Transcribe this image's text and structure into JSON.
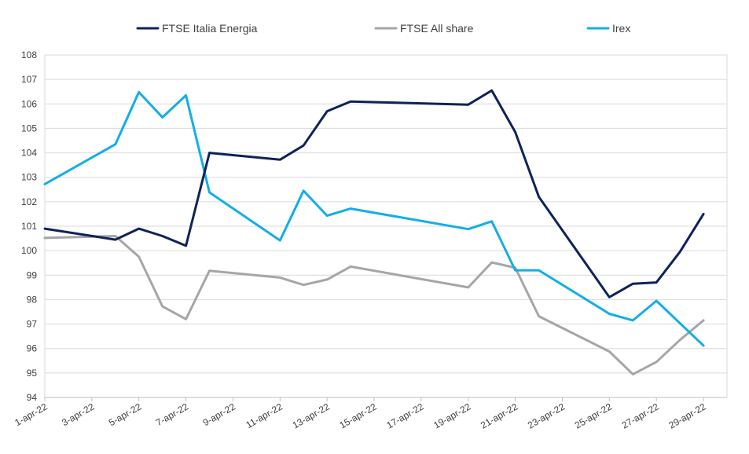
{
  "chart_data": {
    "type": "line",
    "title": "",
    "xlabel": "",
    "ylabel": "",
    "ylim": [
      94,
      108
    ],
    "yticks": [
      94,
      95,
      96,
      97,
      98,
      99,
      100,
      101,
      102,
      103,
      104,
      105,
      106,
      107,
      108
    ],
    "xlim": [
      "2022-04-01",
      "2022-04-30"
    ],
    "xticks": [
      {
        "date": "2022-04-01",
        "label": "1-apr-22"
      },
      {
        "date": "2022-04-03",
        "label": "3-apr-22"
      },
      {
        "date": "2022-04-05",
        "label": "5-apr-22"
      },
      {
        "date": "2022-04-07",
        "label": "7-apr-22"
      },
      {
        "date": "2022-04-09",
        "label": "9-apr-22"
      },
      {
        "date": "2022-04-11",
        "label": "11-apr-22"
      },
      {
        "date": "2022-04-13",
        "label": "13-apr-22"
      },
      {
        "date": "2022-04-15",
        "label": "15-apr-22"
      },
      {
        "date": "2022-04-17",
        "label": "17-apr-22"
      },
      {
        "date": "2022-04-19",
        "label": "19-apr-22"
      },
      {
        "date": "2022-04-21",
        "label": "21-apr-22"
      },
      {
        "date": "2022-04-23",
        "label": "23-apr-22"
      },
      {
        "date": "2022-04-25",
        "label": "25-apr-22"
      },
      {
        "date": "2022-04-27",
        "label": "27-apr-22"
      },
      {
        "date": "2022-04-29",
        "label": "29-apr-22"
      }
    ],
    "grid": true,
    "legend_position": "top",
    "series": [
      {
        "name": "FTSE Italia Energia",
        "color": "#0d2359",
        "points": [
          {
            "x": "2022-04-01",
            "y": 100.9
          },
          {
            "x": "2022-04-04",
            "y": 100.45
          },
          {
            "x": "2022-04-05",
            "y": 100.9
          },
          {
            "x": "2022-04-06",
            "y": 100.6
          },
          {
            "x": "2022-04-07",
            "y": 100.2
          },
          {
            "x": "2022-04-08",
            "y": 104.0
          },
          {
            "x": "2022-04-11",
            "y": 103.72
          },
          {
            "x": "2022-04-12",
            "y": 104.3
          },
          {
            "x": "2022-04-13",
            "y": 105.7
          },
          {
            "x": "2022-04-14",
            "y": 106.1
          },
          {
            "x": "2022-04-19",
            "y": 105.97
          },
          {
            "x": "2022-04-20",
            "y": 106.55
          },
          {
            "x": "2022-04-21",
            "y": 104.85
          },
          {
            "x": "2022-04-22",
            "y": 102.2
          },
          {
            "x": "2022-04-25",
            "y": 98.1
          },
          {
            "x": "2022-04-26",
            "y": 98.65
          },
          {
            "x": "2022-04-27",
            "y": 98.7
          },
          {
            "x": "2022-04-28",
            "y": 99.95
          },
          {
            "x": "2022-04-29",
            "y": 101.5
          }
        ]
      },
      {
        "name": "FTSE All share",
        "color": "#a6a6a6",
        "points": [
          {
            "x": "2022-04-01",
            "y": 100.52
          },
          {
            "x": "2022-04-04",
            "y": 100.6
          },
          {
            "x": "2022-04-05",
            "y": 99.75
          },
          {
            "x": "2022-04-06",
            "y": 97.72
          },
          {
            "x": "2022-04-07",
            "y": 97.2
          },
          {
            "x": "2022-04-08",
            "y": 99.18
          },
          {
            "x": "2022-04-11",
            "y": 98.9
          },
          {
            "x": "2022-04-12",
            "y": 98.6
          },
          {
            "x": "2022-04-13",
            "y": 98.82
          },
          {
            "x": "2022-04-14",
            "y": 99.35
          },
          {
            "x": "2022-04-19",
            "y": 98.5
          },
          {
            "x": "2022-04-20",
            "y": 99.52
          },
          {
            "x": "2022-04-21",
            "y": 99.3
          },
          {
            "x": "2022-04-22",
            "y": 97.32
          },
          {
            "x": "2022-04-25",
            "y": 95.88
          },
          {
            "x": "2022-04-26",
            "y": 94.95
          },
          {
            "x": "2022-04-27",
            "y": 95.45
          },
          {
            "x": "2022-04-28",
            "y": 96.35
          },
          {
            "x": "2022-04-29",
            "y": 97.15
          }
        ]
      },
      {
        "name": "Irex",
        "color": "#13aee6",
        "points": [
          {
            "x": "2022-04-01",
            "y": 102.72
          },
          {
            "x": "2022-04-04",
            "y": 104.35
          },
          {
            "x": "2022-04-05",
            "y": 106.48
          },
          {
            "x": "2022-04-06",
            "y": 105.45
          },
          {
            "x": "2022-04-07",
            "y": 106.35
          },
          {
            "x": "2022-04-08",
            "y": 102.38
          },
          {
            "x": "2022-04-11",
            "y": 100.42
          },
          {
            "x": "2022-04-12",
            "y": 102.45
          },
          {
            "x": "2022-04-13",
            "y": 101.43
          },
          {
            "x": "2022-04-14",
            "y": 101.72
          },
          {
            "x": "2022-04-19",
            "y": 100.88
          },
          {
            "x": "2022-04-20",
            "y": 101.2
          },
          {
            "x": "2022-04-21",
            "y": 99.2
          },
          {
            "x": "2022-04-22",
            "y": 99.2
          },
          {
            "x": "2022-04-25",
            "y": 97.42
          },
          {
            "x": "2022-04-26",
            "y": 97.15
          },
          {
            "x": "2022-04-27",
            "y": 97.95
          },
          {
            "x": "2022-04-29",
            "y": 96.12
          }
        ]
      }
    ]
  }
}
